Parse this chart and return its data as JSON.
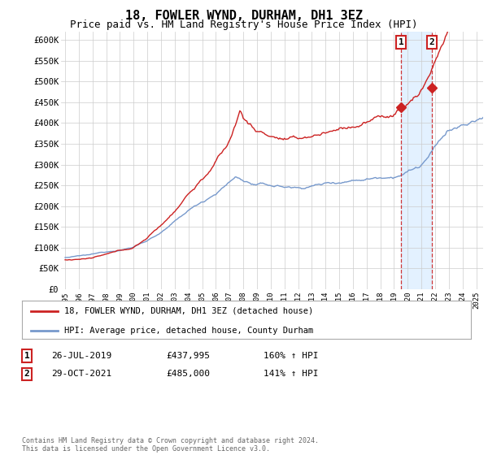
{
  "title": "18, FOWLER WYND, DURHAM, DH1 3EZ",
  "subtitle": "Price paid vs. HM Land Registry's House Price Index (HPI)",
  "title_fontsize": 11,
  "subtitle_fontsize": 9,
  "ylabel_ticks": [
    "£0",
    "£50K",
    "£100K",
    "£150K",
    "£200K",
    "£250K",
    "£300K",
    "£350K",
    "£400K",
    "£450K",
    "£500K",
    "£550K",
    "£600K"
  ],
  "ytick_values": [
    0,
    50000,
    100000,
    150000,
    200000,
    250000,
    300000,
    350000,
    400000,
    450000,
    500000,
    550000,
    600000
  ],
  "ylim": [
    0,
    620000
  ],
  "hpi_color": "#7799cc",
  "price_color": "#cc2222",
  "vline_color": "#cc2222",
  "shade_color": "#ddeeff",
  "marker1_price": 437995,
  "marker2_price": 485000,
  "legend_label1": "18, FOWLER WYND, DURHAM, DH1 3EZ (detached house)",
  "legend_label2": "HPI: Average price, detached house, County Durham",
  "table_rows": [
    [
      "1",
      "26-JUL-2019",
      "£437,995",
      "160% ↑ HPI"
    ],
    [
      "2",
      "29-OCT-2021",
      "£485,000",
      "141% ↑ HPI"
    ]
  ],
  "footer": "Contains HM Land Registry data © Crown copyright and database right 2024.\nThis data is licensed under the Open Government Licence v3.0.",
  "background_color": "#ffffff",
  "grid_color": "#cccccc"
}
